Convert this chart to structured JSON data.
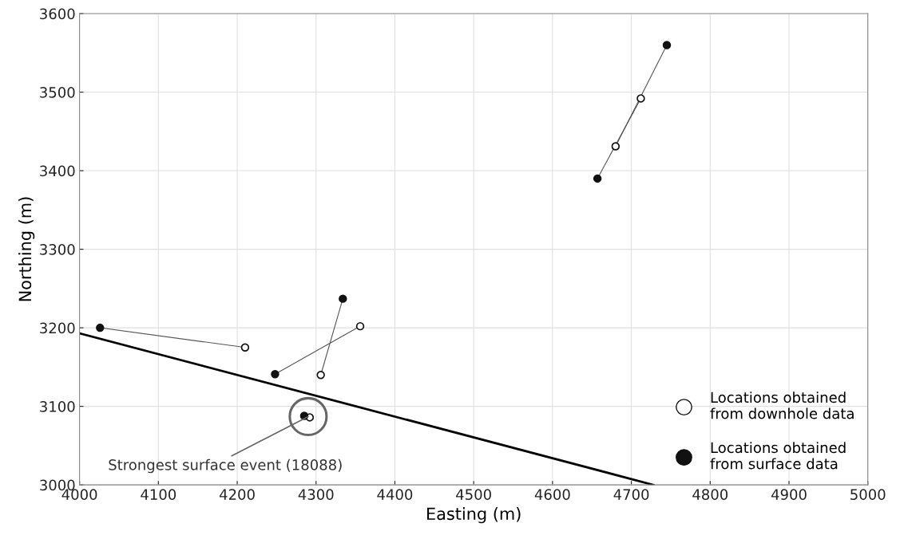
{
  "chart_data": {
    "type": "scatter",
    "xlabel": "Easting (m)",
    "ylabel": "Northing (m)",
    "xlim": [
      4000,
      5000
    ],
    "ylim": [
      3000,
      3600
    ],
    "xticks": [
      4000,
      4100,
      4200,
      4300,
      4400,
      4500,
      4600,
      4700,
      4800,
      4900,
      5000
    ],
    "yticks": [
      3000,
      3100,
      3200,
      3300,
      3400,
      3500,
      3600
    ],
    "grid": true,
    "legend": "bottom right",
    "series": [
      {
        "type": "line",
        "color": "#000000",
        "x": [
          4000,
          4728
        ],
        "values": [
          3193,
          3000
        ]
      },
      {
        "type": "line",
        "color": "#555555",
        "x": [
          4026,
          4210
        ],
        "values": [
          3200,
          3175
        ]
      },
      {
        "type": "line",
        "color": "#555555",
        "x": [
          4248,
          4356
        ],
        "values": [
          3141,
          3202
        ]
      },
      {
        "type": "line",
        "color": "#555555",
        "x": [
          4334,
          4306
        ],
        "values": [
          3237,
          3140
        ]
      },
      {
        "type": "line",
        "color": "#555555",
        "x": [
          4657,
          4712
        ],
        "values": [
          3390,
          3492
        ]
      },
      {
        "type": "line",
        "color": "#555555",
        "x": [
          4680,
          4745
        ],
        "values": [
          3431,
          3560
        ]
      },
      {
        "marker": "circle",
        "name": "Locations obtained\nfrom downhole data",
        "color": "#ffffff",
        "x": [
          4210,
          4356,
          4306,
          4292,
          4712,
          4680
        ],
        "values": [
          3175,
          3202,
          3140,
          3086,
          3492,
          3431
        ]
      },
      {
        "marker": "circle",
        "name": "Locations obtained\nfrom surface data",
        "color": "#111111",
        "x": [
          4026,
          4248,
          4334,
          4285,
          4657,
          4745
        ],
        "values": [
          3200,
          3141,
          3237,
          3088,
          3390,
          3560
        ]
      }
    ],
    "annotations": [
      {
        "text": "Strongest surface event (18088)",
        "x": 4290,
        "y": 3087
      }
    ]
  }
}
